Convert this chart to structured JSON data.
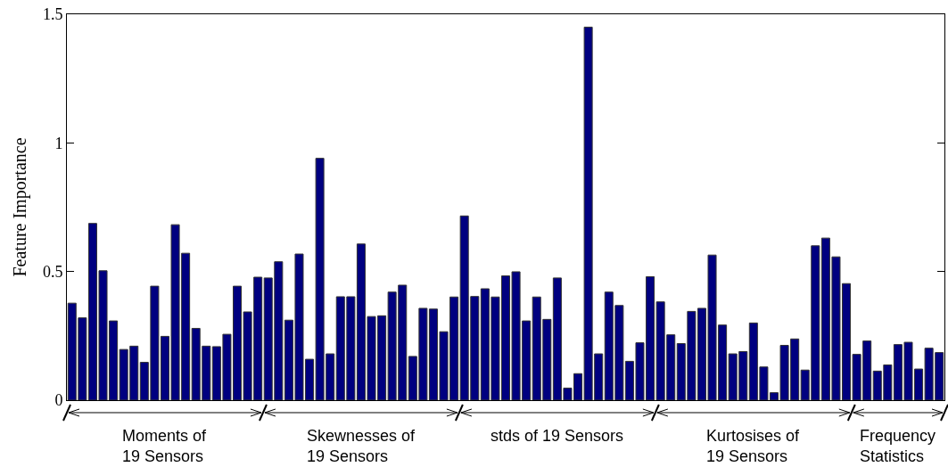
{
  "chart_data": {
    "type": "bar",
    "ylabel": "Feature Importance",
    "color": "#000080",
    "ylim": [
      0,
      1.5
    ],
    "yticks": [
      0,
      0.5,
      1,
      1.5
    ],
    "grid": false,
    "tick_labels": "y",
    "categories": [
      null,
      null,
      null,
      null,
      null,
      null,
      null,
      null,
      null,
      null,
      null,
      null,
      null,
      null,
      null,
      null,
      null,
      null,
      null,
      null,
      null,
      null,
      null,
      null,
      null,
      null,
      null,
      null,
      null,
      null,
      null,
      null,
      null,
      null,
      null,
      null,
      null,
      null,
      null,
      null,
      null,
      null,
      null,
      null,
      null,
      null,
      null,
      null,
      null,
      null,
      null,
      null,
      null,
      null,
      null,
      null,
      null,
      null,
      null,
      null,
      null,
      null,
      null,
      null,
      null,
      null,
      null,
      null,
      null,
      null,
      null,
      null,
      null,
      null,
      null,
      null,
      null,
      null,
      null,
      null,
      null,
      null,
      null,
      null,
      null
    ],
    "values": [
      0.377,
      0.32,
      0.687,
      0.503,
      0.308,
      0.197,
      0.21,
      0.147,
      0.443,
      0.248,
      0.682,
      0.571,
      0.279,
      0.21,
      0.208,
      0.256,
      0.443,
      0.343,
      0.478,
      0.475,
      0.538,
      0.311,
      0.568,
      0.159,
      0.94,
      0.18,
      0.402,
      0.402,
      0.607,
      0.325,
      0.328,
      0.42,
      0.447,
      0.17,
      0.357,
      0.354,
      0.266,
      0.401,
      0.716,
      0.403,
      0.433,
      0.401,
      0.483,
      0.499,
      0.308,
      0.401,
      0.314,
      0.475,
      0.047,
      0.103,
      1.45,
      0.18,
      0.42,
      0.368,
      0.151,
      0.223,
      0.48,
      0.382,
      0.254,
      0.22,
      0.345,
      0.357,
      0.564,
      0.292,
      0.18,
      0.189,
      0.3,
      0.129,
      0.029,
      0.213,
      0.238,
      0.117,
      0.6,
      0.63,
      0.557,
      0.453,
      0.178,
      0.23,
      0.113,
      0.137,
      0.216,
      0.225,
      0.121,
      0.202,
      0.185
    ],
    "annotations": [
      "Moments of\n19 Sensors",
      "Skewnesses of\n19 Sensors",
      "stds of 19 Sensors",
      "Kurtosises of\n19 Sensors",
      "Frequency\nStatistics"
    ]
  }
}
